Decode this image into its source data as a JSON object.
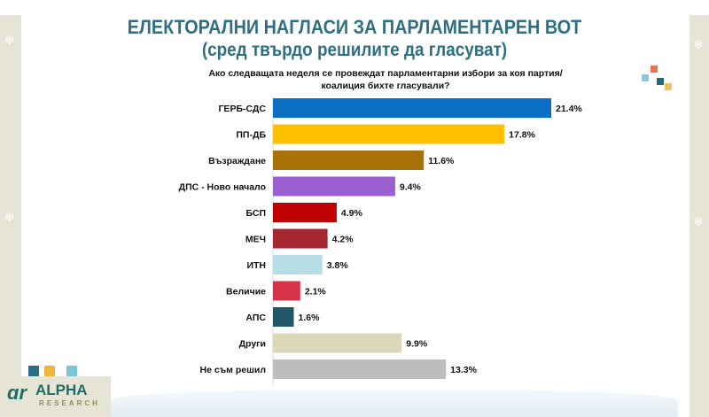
{
  "header": {
    "title": "ЕЛЕКТОРАЛНИ НАГЛАСИ ЗА ПАРЛАМЕНТАРЕН ВОТ",
    "subtitle": "(сред твърдо решилите да гласуват)",
    "question": "Ако следващата неделя се провеждат парламентарни избори за коя партия/коалиция бихте гласували?"
  },
  "logo": {
    "name": "ALPHA",
    "sub": "RESEARCH"
  },
  "chart_data": {
    "type": "bar",
    "orientation": "horizontal",
    "title": "ЕЛЕКТОРАЛНИ НАГЛАСИ ЗА ПАРЛАМЕНТАРЕН ВОТ",
    "xlim": [
      0,
      25
    ],
    "categories": [
      "ГЕРБ-СДС",
      "ПП-ДБ",
      "Възраждане",
      "ДПС - Ново начало",
      "БСП",
      "МЕЧ",
      "ИТН",
      "Величие",
      "АПС",
      "Други",
      "Не съм решил"
    ],
    "values": [
      21.4,
      17.8,
      11.6,
      9.4,
      4.9,
      4.2,
      3.8,
      2.1,
      1.6,
      9.9,
      13.3
    ],
    "labels": [
      "21.4%",
      "17.8%",
      "11.6%",
      "9.4%",
      "4.9%",
      "4.2%",
      "3.8%",
      "2.1%",
      "1.6%",
      "9.9%",
      "13.3%"
    ],
    "colors": [
      "#0a6fc2",
      "#ffc000",
      "#a87208",
      "#9c5fd0",
      "#c00000",
      "#a52530",
      "#b6dce6",
      "#d6334b",
      "#215867",
      "#dad8b8",
      "#bdbdbd"
    ]
  }
}
